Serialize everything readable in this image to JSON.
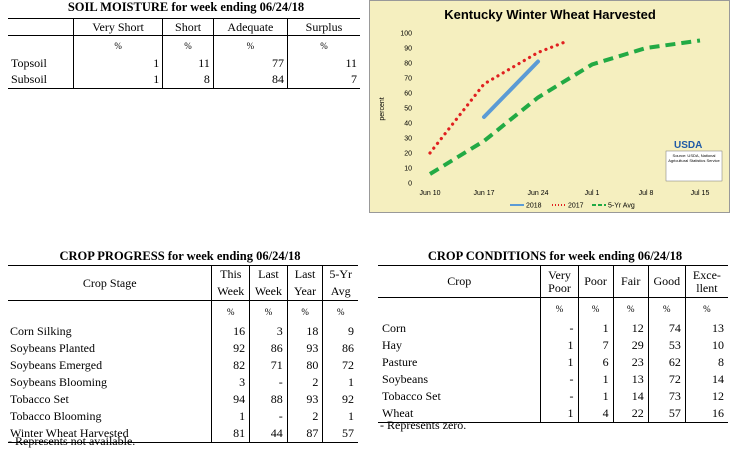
{
  "soil": {
    "title": "SOIL MOISTURE for week ending 06/24/18",
    "columns": [
      "Very Short",
      "Short",
      "Adequate",
      "Surplus"
    ],
    "units": [
      "%",
      "%",
      "%",
      "%"
    ],
    "rows": [
      {
        "label": "Topsoil",
        "values": [
          "1",
          "11",
          "77",
          "11"
        ]
      },
      {
        "label": "Subsoil",
        "values": [
          "1",
          "8",
          "84",
          "7"
        ]
      }
    ]
  },
  "progress": {
    "title": "CROP PROGRESS for week ending 06/24/18",
    "stage_header": "Crop Stage",
    "col1": [
      "This",
      "Week"
    ],
    "col2": [
      "Last",
      "Week"
    ],
    "col3": [
      "Last",
      "Year"
    ],
    "col4": [
      "5-Yr",
      "Avg"
    ],
    "units": [
      "%",
      "%",
      "%",
      "%"
    ],
    "rows": [
      {
        "label": "Corn Silking",
        "values": [
          "16",
          "3",
          "18",
          "9"
        ]
      },
      {
        "label": "Soybeans Planted",
        "values": [
          "92",
          "86",
          "93",
          "86"
        ]
      },
      {
        "label": "Soybeans Emerged",
        "values": [
          "82",
          "71",
          "80",
          "72"
        ]
      },
      {
        "label": "Soybeans Blooming",
        "values": [
          "3",
          "-",
          "2",
          "1"
        ]
      },
      {
        "label": "Tobacco Set",
        "values": [
          "94",
          "88",
          "93",
          "92"
        ]
      },
      {
        "label": "Tobacco Blooming",
        "values": [
          "1",
          "-",
          "2",
          "1"
        ]
      },
      {
        "label": "Winter Wheat Harvested",
        "values": [
          "81",
          "44",
          "87",
          "57"
        ]
      }
    ],
    "note": "- Represents not available."
  },
  "conditions": {
    "title": "CROP CONDITIONS for week ending 06/24/18",
    "crop_header": "Crop",
    "col_vp": [
      "Very",
      "Poor"
    ],
    "col_poor": "Poor",
    "col_fair": "Fair",
    "col_good": "Good",
    "col_exc": [
      "Exce-",
      "llent"
    ],
    "units": [
      "%",
      "%",
      "%",
      "%",
      "%"
    ],
    "rows": [
      {
        "label": "Corn",
        "values": [
          "-",
          "1",
          "12",
          "74",
          "13"
        ]
      },
      {
        "label": "Hay",
        "values": [
          "1",
          "7",
          "29",
          "53",
          "10"
        ]
      },
      {
        "label": "Pasture",
        "values": [
          "1",
          "6",
          "23",
          "62",
          "8"
        ]
      },
      {
        "label": "Soybeans",
        "values": [
          "-",
          "1",
          "13",
          "72",
          "14"
        ]
      },
      {
        "label": "Tobacco Set",
        "values": [
          "-",
          "1",
          "14",
          "73",
          "12"
        ]
      },
      {
        "label": "Wheat",
        "values": [
          "1",
          "4",
          "22",
          "57",
          "16"
        ]
      }
    ],
    "note": "- Represents zero."
  },
  "chart_data": {
    "type": "line",
    "title": "Kentucky Winter Wheat Harvested",
    "ylabel": "percent",
    "xlabel": "",
    "ylim": [
      0,
      100
    ],
    "yticks": [
      "0",
      "10",
      "20",
      "30",
      "40",
      "50",
      "60",
      "70",
      "80",
      "90",
      "100"
    ],
    "x_categories": [
      "Jun 10",
      "Jun 17",
      "Jun 24",
      "Jul 1",
      "Jul 8",
      "Jul 15"
    ],
    "series": [
      {
        "name": "2018",
        "color": "#5b9bd5",
        "style": "solid",
        "points": [
          [
            1,
            44
          ],
          [
            2,
            81
          ]
        ]
      },
      {
        "name": "2017",
        "color": "#e02020",
        "style": "dotted",
        "points": [
          [
            0,
            20
          ],
          [
            1,
            66
          ],
          [
            2,
            87
          ],
          [
            2.5,
            94
          ]
        ]
      },
      {
        "name": "5-Yr Avg",
        "color": "#22aa44",
        "style": "dashed",
        "points": [
          [
            0,
            6
          ],
          [
            1,
            28
          ],
          [
            2,
            57
          ],
          [
            3,
            79
          ],
          [
            4,
            90
          ],
          [
            5,
            95
          ]
        ]
      }
    ],
    "legend_position": "bottom",
    "logo": {
      "text": "USDA",
      "caption": "Source: USDA, National Agricultural Statistics Service"
    }
  }
}
